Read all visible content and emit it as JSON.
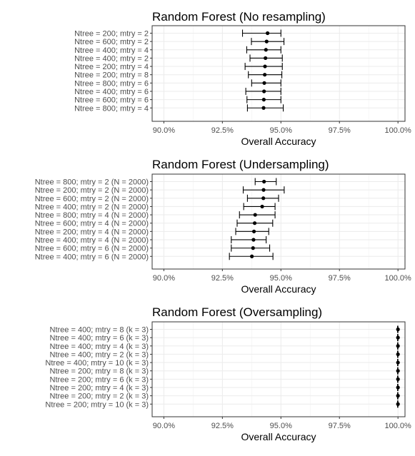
{
  "chart_data": [
    {
      "type": "errorbar",
      "title": "Random Forest (No resampling)",
      "xlabel": "Overall Accuracy",
      "xlim": [
        0.895,
        1.003
      ],
      "xticks": [
        "90.0%",
        "92.5%",
        "95.0%",
        "97.5%",
        "100.0%"
      ],
      "grid": true,
      "categories": [
        "Ntree = 200; mtry = 2",
        "Ntree = 600; mtry = 2",
        "Ntree = 400; mtry = 4",
        "Ntree = 400; mtry = 2",
        "Ntree = 200; mtry = 4",
        "Ntree = 200; mtry = 8",
        "Ntree = 800; mtry = 6",
        "Ntree = 400; mtry = 6",
        "Ntree = 600; mtry = 6",
        "Ntree = 800; mtry = 4"
      ],
      "values": [
        0.9443,
        0.9439,
        0.9436,
        0.9434,
        0.9432,
        0.9431,
        0.9429,
        0.9428,
        0.9427,
        0.9426
      ],
      "lower": [
        0.9336,
        0.9374,
        0.9354,
        0.9368,
        0.9347,
        0.9361,
        0.9375,
        0.935,
        0.9355,
        0.9357
      ],
      "upper": [
        0.95,
        0.9513,
        0.95,
        0.9506,
        0.9506,
        0.9504,
        0.95,
        0.95,
        0.95,
        0.951
      ]
    },
    {
      "type": "errorbar",
      "title": "Random Forest (Undersampling)",
      "xlabel": "Overall Accuracy",
      "xlim": [
        0.895,
        1.003
      ],
      "xticks": [
        "90.0%",
        "92.5%",
        "95.0%",
        "97.5%",
        "100.0%"
      ],
      "grid": true,
      "categories": [
        "Ntree = 800; mtry = 2 (N = 2000)",
        "Ntree = 200; mtry = 2 (N = 2000)",
        "Ntree = 600; mtry = 2 (N = 2000)",
        "Ntree = 400; mtry = 2 (N = 2000)",
        "Ntree = 800; mtry = 4 (N = 2000)",
        "Ntree = 600; mtry = 4 (N = 2000)",
        "Ntree = 200; mtry = 4 (N = 2000)",
        "Ntree = 400; mtry = 4 (N = 2000)",
        "Ntree = 600; mtry = 6 (N = 2000)",
        "Ntree = 400; mtry = 6 (N = 2000)"
      ],
      "values": [
        0.9428,
        0.9426,
        0.9425,
        0.942,
        0.939,
        0.9388,
        0.9385,
        0.9383,
        0.9381,
        0.9376
      ],
      "lower": [
        0.939,
        0.9339,
        0.9357,
        0.9341,
        0.9323,
        0.9313,
        0.9307,
        0.9288,
        0.9288,
        0.928
      ],
      "upper": [
        0.948,
        0.9514,
        0.949,
        0.9475,
        0.9475,
        0.9465,
        0.9448,
        0.9437,
        0.9452,
        0.9466
      ]
    },
    {
      "type": "errorbar",
      "title": "Random Forest (Oversampling)",
      "xlabel": "Overall Accuracy",
      "xlim": [
        0.895,
        1.003
      ],
      "xticks": [
        "90.0%",
        "92.5%",
        "95.0%",
        "97.5%",
        "100.0%"
      ],
      "grid": true,
      "categories": [
        "Ntree = 400; mtry = 8 (k = 3)",
        "Ntree = 400; mtry = 6 (k = 3)",
        "Ntree = 400; mtry = 4 (k = 3)",
        "Ntree = 400; mtry = 2 (k = 3)",
        "Ntree = 400; mtry = 10 (k = 3)",
        "Ntree = 200; mtry = 8 (k = 3)",
        "Ntree = 200; mtry = 6 (k = 3)",
        "Ntree = 200; mtry = 4 (k = 3)",
        "Ntree = 200; mtry = 2 (k = 3)",
        "Ntree = 200; mtry = 10 (k = 3)"
      ],
      "values": [
        1.0,
        1.0,
        1.0,
        1.0,
        1.0,
        1.0,
        1.0,
        1.0,
        1.0,
        1.0
      ],
      "lower": [
        0.9998,
        0.9998,
        0.9998,
        0.9998,
        0.9998,
        0.9998,
        0.9998,
        0.9998,
        0.9998,
        0.9998
      ],
      "upper": [
        1.0,
        1.0,
        1.0,
        1.0,
        1.0,
        1.0,
        1.0,
        1.0,
        1.0,
        1.0
      ]
    }
  ]
}
